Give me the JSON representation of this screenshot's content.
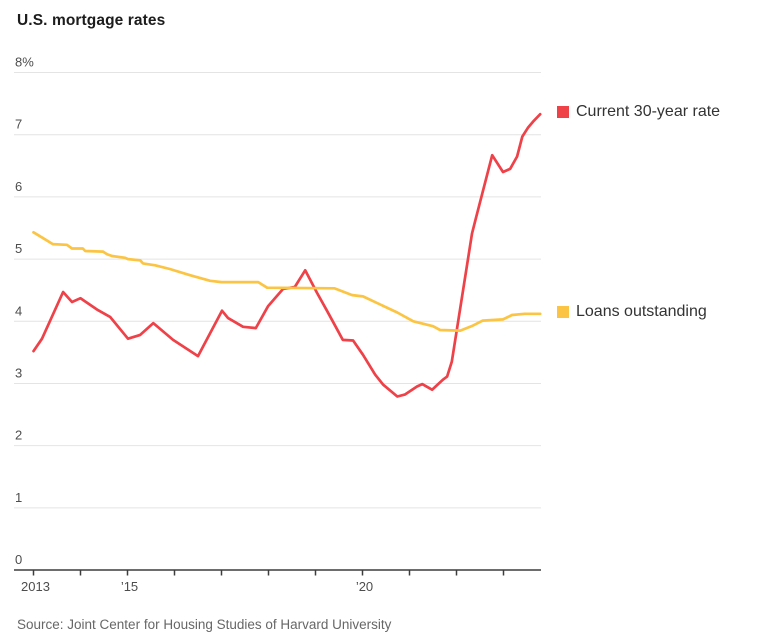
{
  "title": "U.S. mortgage rates",
  "source": "Source: Joint Center for Housing Studies of Harvard University",
  "colors": {
    "rate_red": "#ee4148",
    "loans_yellow": "#fbc543",
    "grid": "#e4e4e4",
    "axis": "#3d3d3d",
    "tick_label": "#4d4d4d",
    "title_text": "#1c1c1c",
    "source_text": "#676767"
  },
  "legend": [
    {
      "label": "Current 30-year rate",
      "color_key": "rate_red"
    },
    {
      "label": "Loans outstanding",
      "color_key": "loans_yellow"
    }
  ],
  "chart_data": {
    "type": "line",
    "title": "U.S. mortgage rates",
    "xlabel": "",
    "ylabel": "",
    "ylim": [
      0,
      8
    ],
    "xlim": [
      2013,
      2023.8
    ],
    "grid": "horizontal",
    "legend_position": "right",
    "y_ticks": [
      {
        "value": 8,
        "label": "8%"
      },
      {
        "value": 7,
        "label": "7"
      },
      {
        "value": 6,
        "label": "6"
      },
      {
        "value": 5,
        "label": "5"
      },
      {
        "value": 4,
        "label": "4"
      },
      {
        "value": 3,
        "label": "3"
      },
      {
        "value": 2,
        "label": "2"
      },
      {
        "value": 1,
        "label": "1"
      },
      {
        "value": 0,
        "label": "0"
      }
    ],
    "x_ticks": [
      {
        "year": 2013,
        "label": "2013"
      },
      {
        "year": 2014,
        "label": ""
      },
      {
        "year": 2015,
        "label": "’15"
      },
      {
        "year": 2016,
        "label": ""
      },
      {
        "year": 2017,
        "label": ""
      },
      {
        "year": 2018,
        "label": ""
      },
      {
        "year": 2019,
        "label": ""
      },
      {
        "year": 2020,
        "label": "’20"
      },
      {
        "year": 2021,
        "label": ""
      },
      {
        "year": 2022,
        "label": ""
      },
      {
        "year": 2023,
        "label": ""
      }
    ],
    "series": [
      {
        "name": "Current 30-year rate",
        "color_key": "rate_red",
        "points": [
          [
            2013.0,
            3.52
          ],
          [
            2013.18,
            3.72
          ],
          [
            2013.63,
            4.47
          ],
          [
            2013.82,
            4.31
          ],
          [
            2014.0,
            4.37
          ],
          [
            2014.37,
            4.18
          ],
          [
            2014.63,
            4.07
          ],
          [
            2015.01,
            3.72
          ],
          [
            2015.27,
            3.78
          ],
          [
            2015.55,
            3.97
          ],
          [
            2015.97,
            3.7
          ],
          [
            2016.5,
            3.44
          ],
          [
            2017.01,
            4.17
          ],
          [
            2017.14,
            4.05
          ],
          [
            2017.46,
            3.91
          ],
          [
            2017.73,
            3.89
          ],
          [
            2017.99,
            4.24
          ],
          [
            2018.31,
            4.52
          ],
          [
            2018.56,
            4.55
          ],
          [
            2018.78,
            4.82
          ],
          [
            2019.03,
            4.46
          ],
          [
            2019.25,
            4.16
          ],
          [
            2019.46,
            3.87
          ],
          [
            2019.58,
            3.7
          ],
          [
            2019.8,
            3.69
          ],
          [
            2020.01,
            3.46
          ],
          [
            2020.27,
            3.14
          ],
          [
            2020.44,
            2.98
          ],
          [
            2020.74,
            2.79
          ],
          [
            2020.9,
            2.82
          ],
          [
            2021.16,
            2.95
          ],
          [
            2021.27,
            2.99
          ],
          [
            2021.48,
            2.9
          ],
          [
            2021.71,
            3.06
          ],
          [
            2021.8,
            3.11
          ],
          [
            2021.9,
            3.35
          ],
          [
            2022.33,
            5.41
          ],
          [
            2022.41,
            5.65
          ],
          [
            2022.76,
            6.67
          ],
          [
            2022.99,
            6.4
          ],
          [
            2023.14,
            6.45
          ],
          [
            2023.29,
            6.65
          ],
          [
            2023.4,
            6.97
          ],
          [
            2023.52,
            7.11
          ],
          [
            2023.63,
            7.21
          ],
          [
            2023.78,
            7.33
          ]
        ]
      },
      {
        "name": "Loans outstanding",
        "color_key": "loans_yellow",
        "points": [
          [
            2013.0,
            5.43
          ],
          [
            2013.24,
            5.32
          ],
          [
            2013.41,
            5.24
          ],
          [
            2013.71,
            5.23
          ],
          [
            2013.82,
            5.17
          ],
          [
            2014.05,
            5.17
          ],
          [
            2014.1,
            5.13
          ],
          [
            2014.48,
            5.12
          ],
          [
            2014.56,
            5.08
          ],
          [
            2014.67,
            5.05
          ],
          [
            2014.95,
            5.02
          ],
          [
            2015.01,
            5.0
          ],
          [
            2015.27,
            4.98
          ],
          [
            2015.33,
            4.93
          ],
          [
            2015.59,
            4.9
          ],
          [
            2015.9,
            4.84
          ],
          [
            2016.33,
            4.74
          ],
          [
            2016.76,
            4.65
          ],
          [
            2017.0,
            4.63
          ],
          [
            2017.78,
            4.63
          ],
          [
            2017.97,
            4.54
          ],
          [
            2019.4,
            4.53
          ],
          [
            2019.78,
            4.42
          ],
          [
            2020.01,
            4.4
          ],
          [
            2020.74,
            4.14
          ],
          [
            2021.08,
            4.0
          ],
          [
            2021.5,
            3.92
          ],
          [
            2021.65,
            3.86
          ],
          [
            2022.08,
            3.85
          ],
          [
            2022.35,
            3.93
          ],
          [
            2022.56,
            4.01
          ],
          [
            2022.99,
            4.03
          ],
          [
            2023.18,
            4.1
          ],
          [
            2023.45,
            4.12
          ],
          [
            2023.78,
            4.12
          ]
        ]
      }
    ]
  }
}
